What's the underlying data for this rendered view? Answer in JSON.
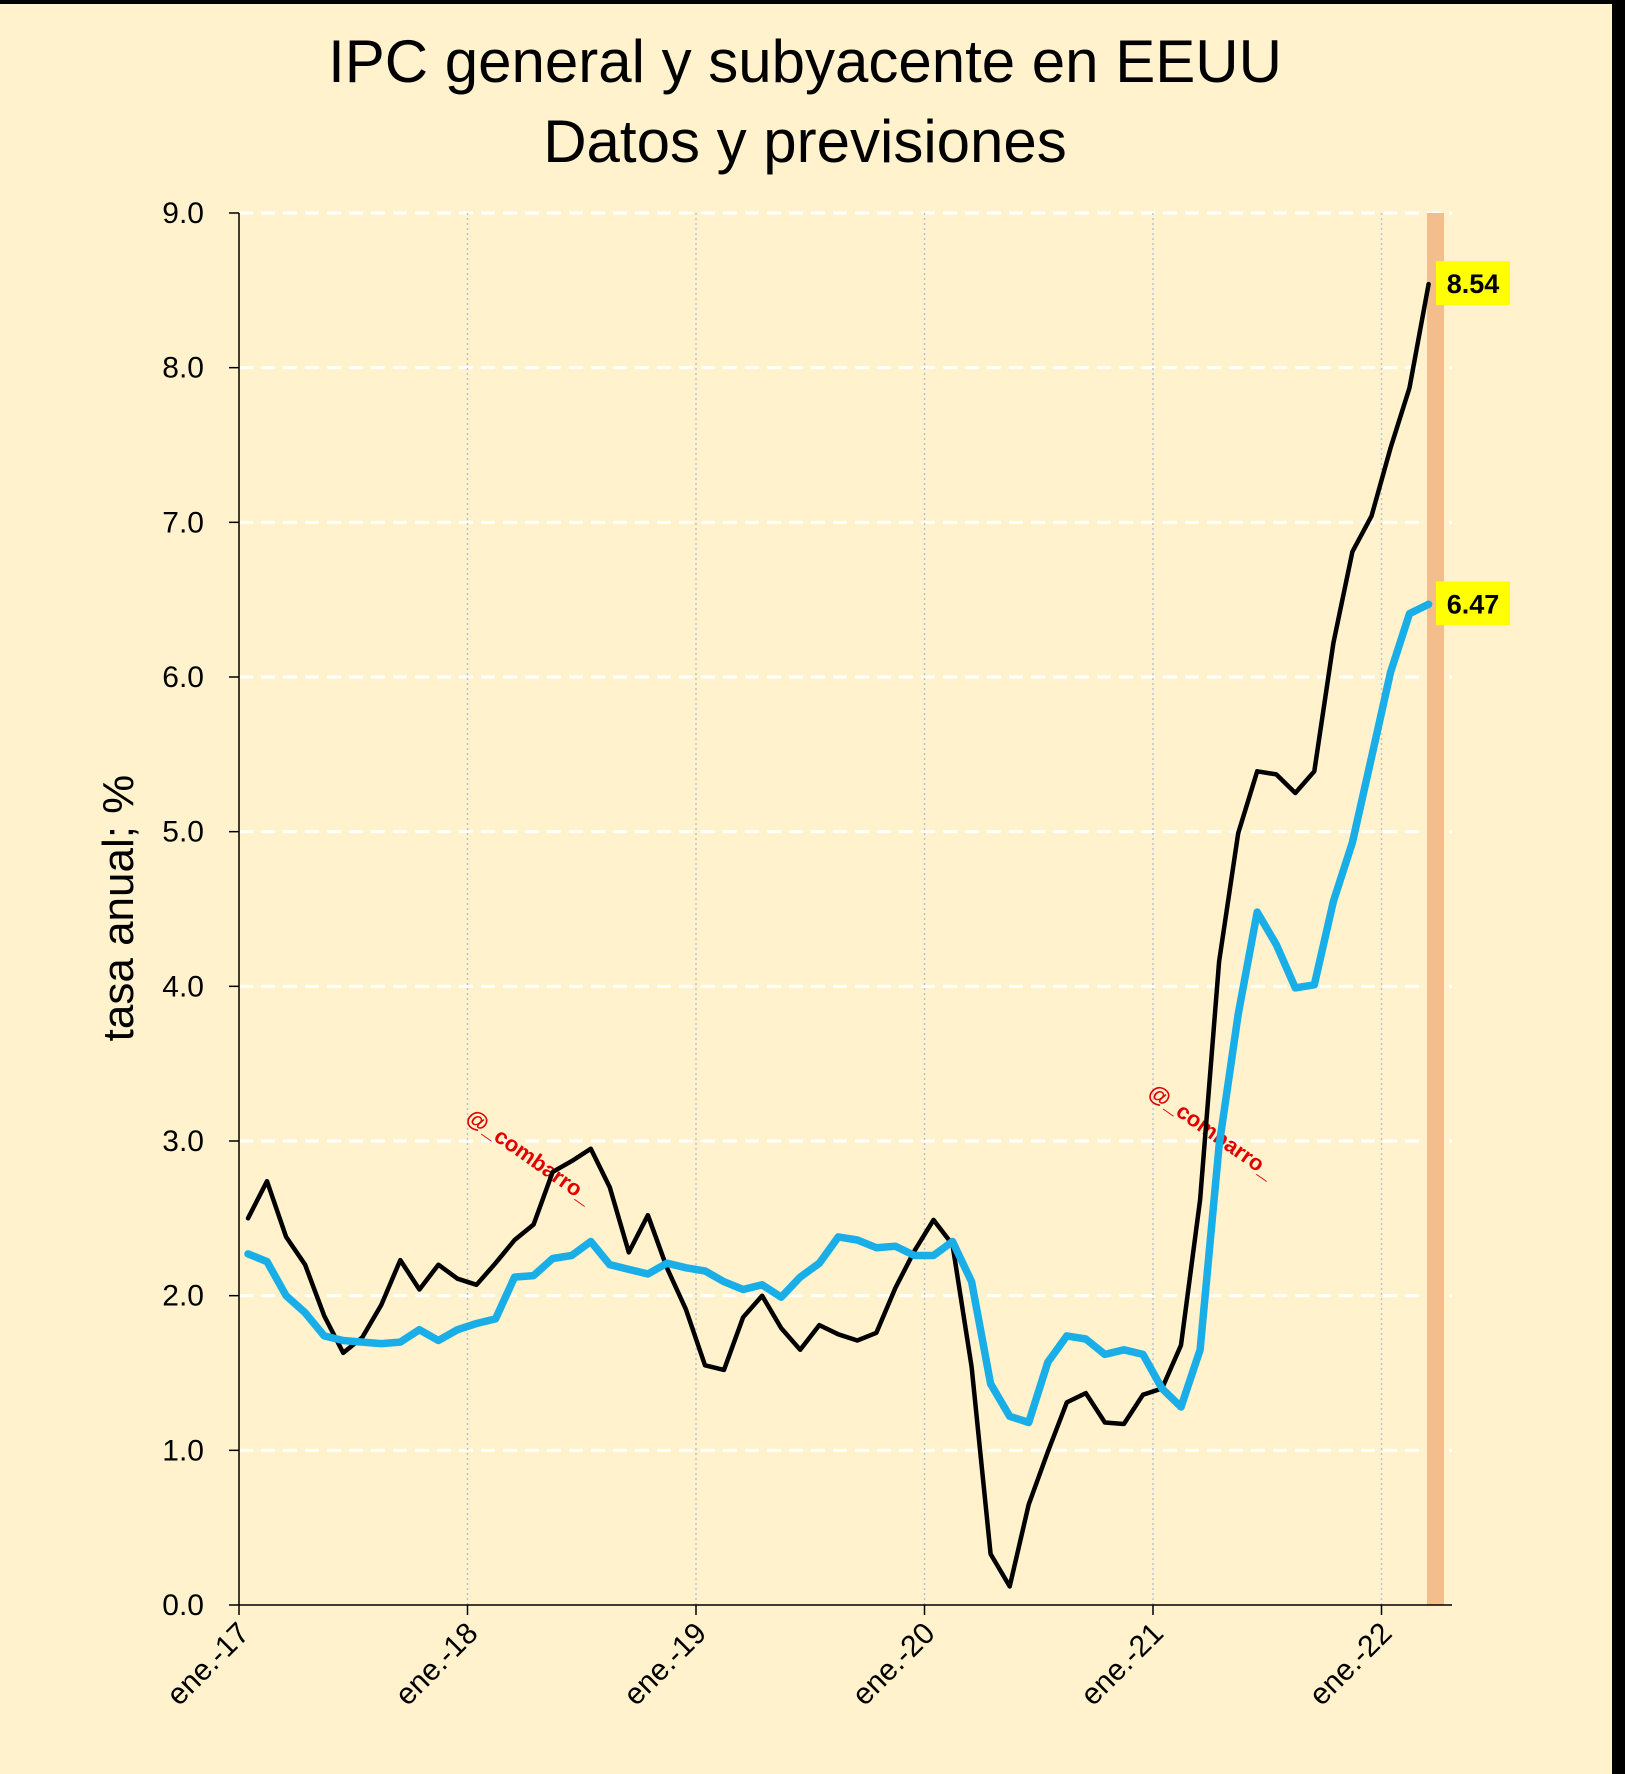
{
  "chart_data": {
    "type": "line",
    "title": "IPC general y subyacente en EEUU",
    "subtitle": "Datos y previsiones",
    "ylabel": "tasa anual; %",
    "xlabel": "",
    "ylim": [
      0,
      9
    ],
    "yticks": [
      "0.0",
      "1.0",
      "2.0",
      "3.0",
      "4.0",
      "5.0",
      "6.0",
      "7.0",
      "8.0",
      "9.0"
    ],
    "xticks": [
      "ene.-17",
      "ene.-18",
      "ene.-19",
      "ene.-20",
      "ene.-21",
      "ene.-22"
    ],
    "x_start": "2017-01",
    "x_end": "2022-03",
    "grid": "horizontal dashed, vertical dotted",
    "legend": "none",
    "forecast_band": "2022-04",
    "watermark": "@_combarro_",
    "series": [
      {
        "color": "#000000",
        "end_label": "8.54",
        "values": [
          2.5,
          2.74,
          2.38,
          2.2,
          1.87,
          1.63,
          1.73,
          1.94,
          2.23,
          2.04,
          2.2,
          2.11,
          2.07,
          2.21,
          2.36,
          2.46,
          2.8,
          2.87,
          2.95,
          2.7,
          2.28,
          2.52,
          2.18,
          1.91,
          1.55,
          1.52,
          1.86,
          2.0,
          1.79,
          1.65,
          1.81,
          1.75,
          1.71,
          1.76,
          2.05,
          2.29,
          2.49,
          2.33,
          1.54,
          0.33,
          0.12,
          0.65,
          0.99,
          1.31,
          1.37,
          1.18,
          1.17,
          1.36,
          1.4,
          1.68,
          2.62,
          4.16,
          4.99,
          5.39,
          5.37,
          5.25,
          5.39,
          6.22,
          6.81,
          7.04,
          7.48,
          7.87,
          8.54
        ]
      },
      {
        "color": "#19aee8",
        "end_label": "6.47",
        "values": [
          2.27,
          2.22,
          2.0,
          1.89,
          1.74,
          1.71,
          1.7,
          1.69,
          1.7,
          1.78,
          1.71,
          1.78,
          1.82,
          1.85,
          2.12,
          2.13,
          2.24,
          2.26,
          2.35,
          2.2,
          2.17,
          2.14,
          2.21,
          2.18,
          2.16,
          2.09,
          2.04,
          2.07,
          1.99,
          2.12,
          2.21,
          2.38,
          2.36,
          2.31,
          2.32,
          2.26,
          2.26,
          2.35,
          2.09,
          1.43,
          1.22,
          1.18,
          1.57,
          1.74,
          1.72,
          1.62,
          1.65,
          1.62,
          1.4,
          1.28,
          1.65,
          2.97,
          3.82,
          4.48,
          4.27,
          3.99,
          4.01,
          4.55,
          4.93,
          5.48,
          6.03,
          6.41,
          6.47
        ]
      }
    ]
  }
}
